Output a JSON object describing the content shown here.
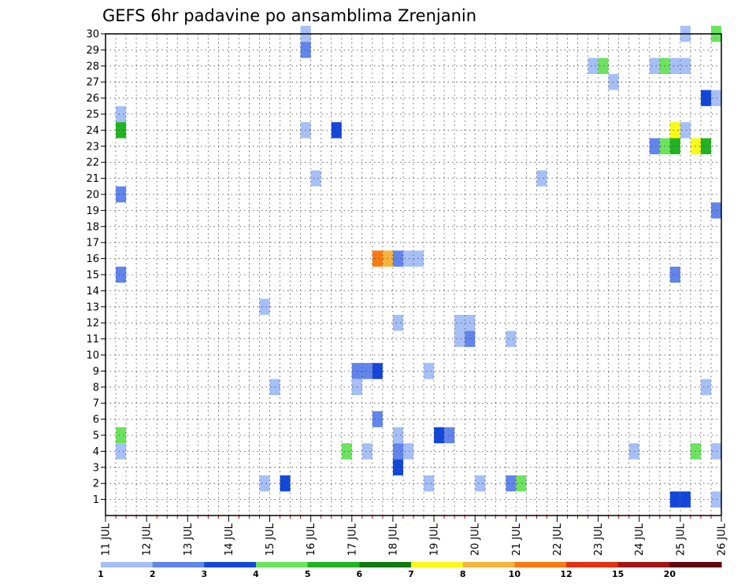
{
  "chart_data": {
    "type": "heatmap",
    "title": "GEFS 6hr padavine po ansamblima Zrenjanin",
    "x_ticks": [
      "11 JUL",
      "12 JUL",
      "13 JUL",
      "14 JUL",
      "15 JUL",
      "16 JUL",
      "17 JUL",
      "18 JUL",
      "19 JUL",
      "20 JUL",
      "21 JUL",
      "22 JUL",
      "23 JUL",
      "24 JUL",
      "25 JUL",
      "26 JUL"
    ],
    "y_ticks": [
      "1",
      "2",
      "3",
      "4",
      "5",
      "6",
      "7",
      "8",
      "9",
      "10",
      "11",
      "12",
      "13",
      "14",
      "15",
      "16",
      "17",
      "18",
      "19",
      "20",
      "21",
      "22",
      "23",
      "24",
      "25",
      "26",
      "27",
      "28",
      "29",
      "30"
    ],
    "xlim_days": [
      11,
      26
    ],
    "ylim": [
      0,
      30
    ],
    "grid": true,
    "legend": {
      "position": "bottom",
      "labels": [
        "1",
        "2",
        "3",
        "4",
        "5",
        "6",
        "7",
        "8",
        "10",
        "12",
        "15",
        "20"
      ],
      "colors": [
        "#a7bff7",
        "#6185ec",
        "#1447d9",
        "#6ce35e",
        "#21b321",
        "#127a12",
        "#fafa17",
        "#f7b43a",
        "#f97a0f",
        "#e53012",
        "#a31616",
        "#61080c"
      ]
    },
    "cells": [
      {
        "member": 30,
        "day": 15.875,
        "level": 1
      },
      {
        "member": 29,
        "day": 15.875,
        "level": 2
      },
      {
        "member": 24,
        "day": 15.875,
        "level": 1
      },
      {
        "member": 24,
        "day": 16.625,
        "level": 3
      },
      {
        "member": 21,
        "day": 16.125,
        "level": 1
      },
      {
        "member": 16,
        "day": 17.625,
        "level": 9
      },
      {
        "member": 16,
        "day": 17.875,
        "level": 8
      },
      {
        "member": 16,
        "day": 18.125,
        "level": 2
      },
      {
        "member": 16,
        "day": 18.375,
        "level": 1
      },
      {
        "member": 16,
        "day": 18.625,
        "level": 1
      },
      {
        "member": 13,
        "day": 14.875,
        "level": 1
      },
      {
        "member": 12,
        "day": 18.125,
        "level": 1
      },
      {
        "member": 9,
        "day": 17.125,
        "level": 2
      },
      {
        "member": 9,
        "day": 17.375,
        "level": 2
      },
      {
        "member": 9,
        "day": 17.625,
        "level": 3
      },
      {
        "member": 8,
        "day": 17.125,
        "level": 1
      },
      {
        "member": 8,
        "day": 15.125,
        "level": 1
      },
      {
        "member": 6,
        "day": 17.625,
        "level": 2
      },
      {
        "member": 5,
        "day": 18.125,
        "level": 1
      },
      {
        "member": 4,
        "day": 16.875,
        "level": 4
      },
      {
        "member": 4,
        "day": 17.375,
        "level": 1
      },
      {
        "member": 4,
        "day": 18.125,
        "level": 2
      },
      {
        "member": 4,
        "day": 18.375,
        "level": 1
      },
      {
        "member": 3,
        "day": 18.125,
        "level": 3
      },
      {
        "member": 2,
        "day": 14.875,
        "level": 1
      },
      {
        "member": 2,
        "day": 15.375,
        "level": 3
      },
      {
        "member": 30,
        "day": 25.125,
        "level": 1
      },
      {
        "member": 30,
        "day": 25.875,
        "level": 4
      },
      {
        "member": 28,
        "day": 22.875,
        "level": 1
      },
      {
        "member": 28,
        "day": 23.125,
        "level": 4
      },
      {
        "member": 27,
        "day": 23.375,
        "level": 1
      },
      {
        "member": 28,
        "day": 24.375,
        "level": 1
      },
      {
        "member": 28,
        "day": 24.625,
        "level": 4
      },
      {
        "member": 28,
        "day": 24.875,
        "level": 1
      },
      {
        "member": 28,
        "day": 25.125,
        "level": 1
      },
      {
        "member": 26,
        "day": 25.625,
        "level": 3
      },
      {
        "member": 26,
        "day": 25.875,
        "level": 1
      },
      {
        "member": 25,
        "day": 11.375,
        "level": 1
      },
      {
        "member": 24,
        "day": 11.375,
        "level": 5
      },
      {
        "member": 24,
        "day": 24.875,
        "level": 7
      },
      {
        "member": 24,
        "day": 25.125,
        "level": 1
      },
      {
        "member": 23,
        "day": 24.375,
        "level": 2
      },
      {
        "member": 23,
        "day": 24.625,
        "level": 4
      },
      {
        "member": 23,
        "day": 24.875,
        "level": 5
      },
      {
        "member": 23,
        "day": 25.375,
        "level": 7
      },
      {
        "member": 23,
        "day": 25.625,
        "level": 5
      },
      {
        "member": 21,
        "day": 21.625,
        "level": 1
      },
      {
        "member": 20,
        "day": 11.375,
        "level": 2
      },
      {
        "member": 19,
        "day": 25.875,
        "level": 2
      },
      {
        "member": 15,
        "day": 11.375,
        "level": 2
      },
      {
        "member": 15,
        "day": 24.875,
        "level": 2
      },
      {
        "member": 12,
        "day": 19.625,
        "level": 1
      },
      {
        "member": 12,
        "day": 19.875,
        "level": 1
      },
      {
        "member": 11,
        "day": 19.625,
        "level": 1
      },
      {
        "member": 11,
        "day": 19.875,
        "level": 2
      },
      {
        "member": 11,
        "day": 20.875,
        "level": 1
      },
      {
        "member": 9,
        "day": 18.875,
        "level": 1
      },
      {
        "member": 8,
        "day": 25.625,
        "level": 1
      },
      {
        "member": 5,
        "day": 11.375,
        "level": 4
      },
      {
        "member": 4,
        "day": 11.375,
        "level": 1
      },
      {
        "member": 5,
        "day": 19.125,
        "level": 3
      },
      {
        "member": 5,
        "day": 19.375,
        "level": 2
      },
      {
        "member": 4,
        "day": 23.875,
        "level": 1
      },
      {
        "member": 4,
        "day": 25.375,
        "level": 4
      },
      {
        "member": 4,
        "day": 25.875,
        "level": 1
      },
      {
        "member": 2,
        "day": 18.875,
        "level": 1
      },
      {
        "member": 2,
        "day": 20.125,
        "level": 1
      },
      {
        "member": 2,
        "day": 20.875,
        "level": 2
      },
      {
        "member": 2,
        "day": 21.125,
        "level": 4
      },
      {
        "member": 1,
        "day": 24.875,
        "level": 3
      },
      {
        "member": 1,
        "day": 25.125,
        "level": 3
      },
      {
        "member": 1,
        "day": 25.875,
        "level": 1
      }
    ]
  }
}
